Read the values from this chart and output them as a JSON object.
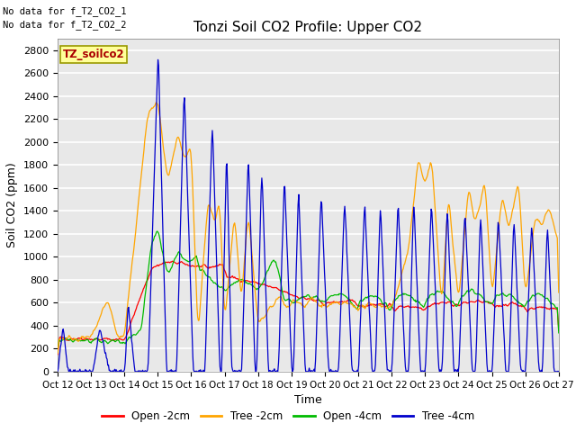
{
  "title": "Tonzi Soil CO2 Profile: Upper CO2",
  "xlabel": "Time",
  "ylabel": "Soil CO2 (ppm)",
  "note1": "No data for f_T2_CO2_1",
  "note2": "No data for f_T2_CO2_2",
  "legend_label": "TZ_soilco2",
  "ylim": [
    0,
    2900
  ],
  "line_colors": {
    "open_2cm": "#FF0000",
    "tree_2cm": "#FFA500",
    "open_4cm": "#00BB00",
    "tree_4cm": "#0000CC"
  },
  "legend_entries": [
    "Open -2cm",
    "Tree -2cm",
    "Open -4cm",
    "Tree -4cm"
  ],
  "x_tick_labels": [
    "Oct 12",
    "Oct 13",
    "Oct 14",
    "Oct 15",
    "Oct 16",
    "Oct 17",
    "Oct 18",
    "Oct 19",
    "Oct 20",
    "Oct 21",
    "Oct 22",
    "Oct 23",
    "Oct 24",
    "Oct 25",
    "Oct 26",
    "Oct 27"
  ],
  "bg_color": "#E8E8E8",
  "grid_color": "#FFFFFF"
}
